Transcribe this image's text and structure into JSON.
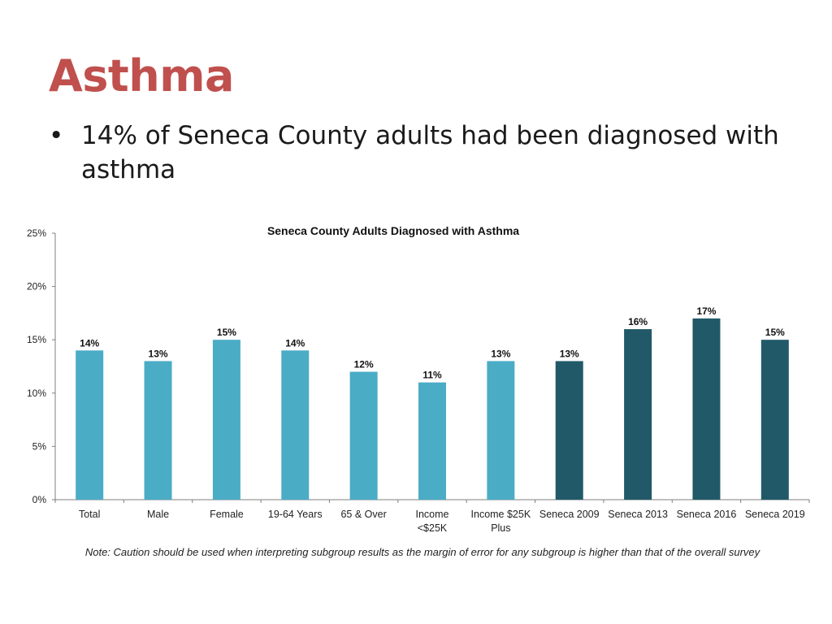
{
  "slide": {
    "title": "Asthma",
    "bullets": [
      "14% of Seneca County adults had been diagnosed with asthma"
    ],
    "bullet_symbol": "•",
    "note": "Note: Caution should be used when interpreting subgroup results as the margin of error for any subgroup is higher than that of the overall survey"
  },
  "chart_data": {
    "type": "bar",
    "title": "Seneca County Adults Diagnosed with Asthma",
    "xlabel": "",
    "ylabel": "",
    "ylim": [
      0,
      25
    ],
    "yticks": [
      "0%",
      "5%",
      "10%",
      "15%",
      "20%",
      "25%"
    ],
    "grid": false,
    "legend": "none",
    "categories": [
      [
        "Total"
      ],
      [
        "Male"
      ],
      [
        "Female"
      ],
      [
        "19-64 Years"
      ],
      [
        "65 & Over"
      ],
      [
        "Income",
        "<$25K"
      ],
      [
        "Income $25K",
        "Plus"
      ],
      [
        "Seneca 2009"
      ],
      [
        "Seneca 2013"
      ],
      [
        "Seneca 2016"
      ],
      [
        "Seneca 2019"
      ]
    ],
    "values": [
      14,
      13,
      15,
      14,
      12,
      11,
      13,
      13,
      16,
      17,
      15
    ],
    "value_labels": [
      "14%",
      "13%",
      "15%",
      "14%",
      "12%",
      "11%",
      "13%",
      "13%",
      "16%",
      "17%",
      "15%"
    ],
    "bar_colors": [
      "#4bacc6",
      "#4bacc6",
      "#4bacc6",
      "#4bacc6",
      "#4bacc6",
      "#4bacc6",
      "#4bacc6",
      "#215968",
      "#215968",
      "#215968",
      "#215968"
    ]
  }
}
